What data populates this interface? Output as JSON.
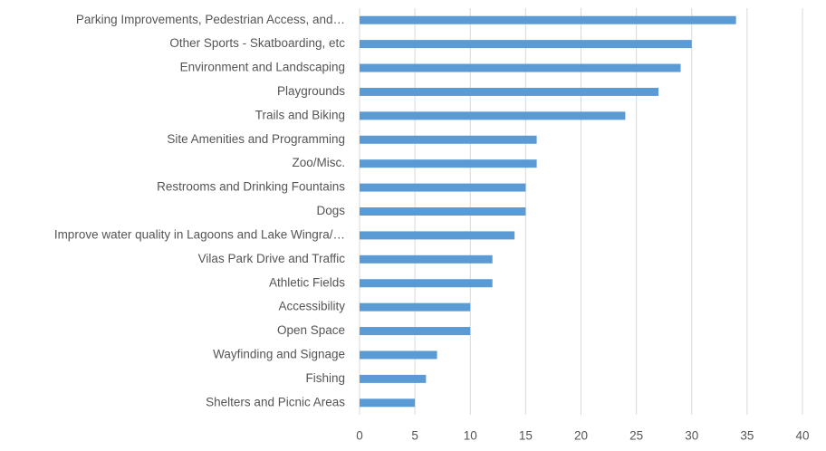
{
  "chart_data": {
    "type": "bar",
    "orientation": "horizontal",
    "categories": [
      "Parking Improvements, Pedestrian Access, and…",
      "Other Sports - Skatboarding, etc",
      "Environment and Landscaping",
      "Playgrounds",
      "Trails and Biking",
      "Site Amenities and Programming",
      "Zoo/Misc.",
      "Restrooms and Drinking Fountains",
      "Dogs",
      "Improve water quality in Lagoons and Lake Wingra/…",
      "Vilas Park Drive and Traffic",
      "Athletic Fields",
      "Accessibility",
      "Open Space",
      "Wayfinding and Signage",
      "Fishing",
      "Shelters and Picnic Areas"
    ],
    "values": [
      34,
      30,
      29,
      27,
      24,
      16,
      16,
      15,
      15,
      14,
      12,
      12,
      10,
      10,
      7,
      6,
      5
    ],
    "color": "#5b9bd5",
    "xlim": [
      0,
      40
    ],
    "xticks": [
      0,
      5,
      10,
      15,
      20,
      25,
      30,
      35,
      40
    ],
    "grid": true
  }
}
